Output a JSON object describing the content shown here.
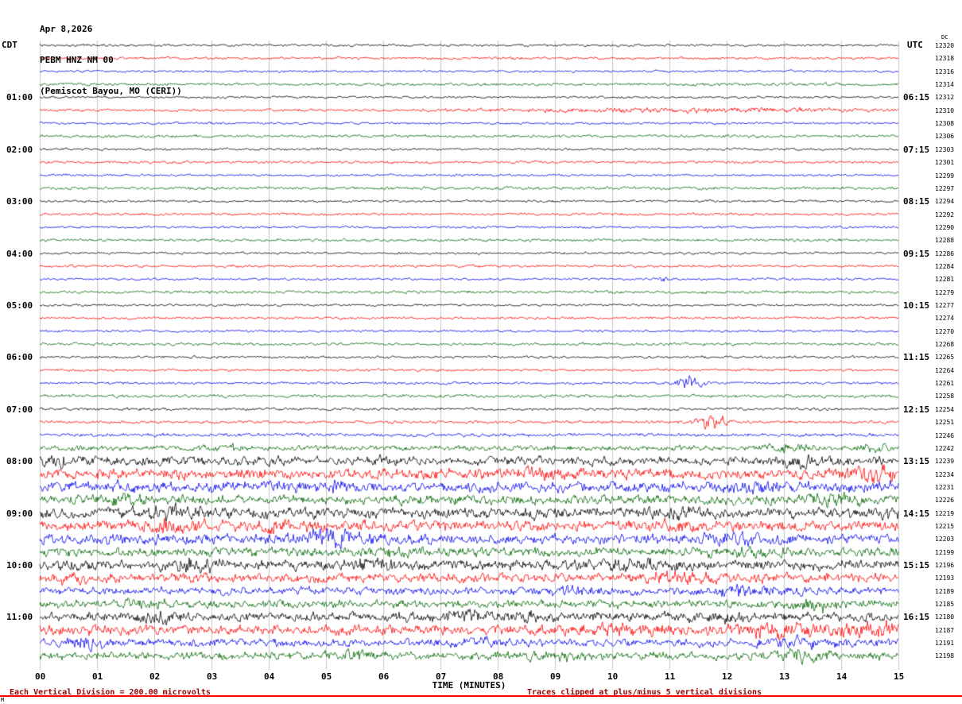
{
  "header": {
    "date": "Apr 8,2026",
    "station": "PEBM HNZ NM 00",
    "location": "(Pemiscot Bayou, MO (CERI))"
  },
  "axes": {
    "left_tz": "CDT",
    "right_tz": "UTC",
    "dc_label": "DC",
    "xlabel": "TIME (MINUTES)",
    "x_ticks": [
      "00",
      "01",
      "02",
      "03",
      "04",
      "05",
      "06",
      "07",
      "08",
      "09",
      "10",
      "11",
      "12",
      "13",
      "14",
      "15"
    ]
  },
  "footer": {
    "left_note": "Each Vertical Division =  200.00 microvolts",
    "right_note": "Traces clipped at plus/minus 5 vertical divisions",
    "corner": "M"
  },
  "chart_data": {
    "type": "line",
    "title": "Helicorder seismogram PEBM HNZ NM 00 (Pemiscot Bayou, MO, CERI), Apr 8 2026",
    "xlabel": "TIME (MINUTES)",
    "x_range_minutes": [
      0,
      15
    ],
    "minutes_per_row": 15,
    "rows_per_hour": 4,
    "y_scale_note": "Each vertical division = 200.00 microvolts; traces clipped at +/-5 divisions",
    "grid_color": "#c6c6c6",
    "trace_colors": [
      "#000000",
      "#ff0000",
      "#0000ee",
      "#006600"
    ],
    "legend": "row colors cycle black, red, blue, green; left labels CDT start time, right labels UTC end time, far right column DC value",
    "rows": [
      {
        "dc": "12320",
        "amp": 0.9,
        "events": []
      },
      {
        "dc": "12318",
        "amp": 1.0,
        "events": []
      },
      {
        "dc": "12316",
        "amp": 0.9,
        "events": []
      },
      {
        "dc": "12314",
        "amp": 1.1,
        "events": []
      },
      {
        "cdt": "01:00",
        "utc": "06:15",
        "dc": "12312",
        "amp": 0.9,
        "events": []
      },
      {
        "dc": "12310",
        "amp": 1.0,
        "events": [
          {
            "t": 11.5,
            "a": 1.2,
            "w": 2.5
          }
        ]
      },
      {
        "dc": "12308",
        "amp": 0.9,
        "events": []
      },
      {
        "dc": "12306",
        "amp": 1.1,
        "events": []
      },
      {
        "cdt": "02:00",
        "utc": "07:15",
        "dc": "12303",
        "amp": 0.9,
        "events": []
      },
      {
        "dc": "12301",
        "amp": 1.0,
        "events": []
      },
      {
        "dc": "12299",
        "amp": 0.9,
        "events": []
      },
      {
        "dc": "12297",
        "amp": 1.1,
        "events": []
      },
      {
        "cdt": "03:00",
        "utc": "08:15",
        "dc": "12294",
        "amp": 0.9,
        "events": []
      },
      {
        "dc": "12292",
        "amp": 1.0,
        "events": []
      },
      {
        "dc": "12290",
        "amp": 0.9,
        "events": []
      },
      {
        "dc": "12288",
        "amp": 1.1,
        "events": []
      },
      {
        "cdt": "04:00",
        "utc": "09:15",
        "dc": "12286",
        "amp": 0.9,
        "events": []
      },
      {
        "dc": "12284",
        "amp": 1.0,
        "events": []
      },
      {
        "dc": "12281",
        "amp": 0.9,
        "events": [
          {
            "t": 10.9,
            "a": 2.5,
            "w": 0.06
          }
        ]
      },
      {
        "dc": "12279",
        "amp": 1.1,
        "events": []
      },
      {
        "cdt": "05:00",
        "utc": "10:15",
        "dc": "12277",
        "amp": 0.9,
        "events": []
      },
      {
        "dc": "12274",
        "amp": 1.0,
        "events": []
      },
      {
        "dc": "12270",
        "amp": 0.9,
        "events": []
      },
      {
        "dc": "12268",
        "amp": 1.1,
        "events": []
      },
      {
        "cdt": "06:00",
        "utc": "11:15",
        "dc": "12265",
        "amp": 1.0,
        "events": []
      },
      {
        "dc": "12264",
        "amp": 1.0,
        "events": []
      },
      {
        "dc": "12261",
        "amp": 1.0,
        "events": [
          {
            "t": 11.35,
            "a": 4.0,
            "w": 0.18
          }
        ]
      },
      {
        "dc": "12258",
        "amp": 1.2,
        "events": []
      },
      {
        "cdt": "07:00",
        "utc": "12:15",
        "dc": "12254",
        "amp": 1.1,
        "events": []
      },
      {
        "dc": "12251",
        "amp": 1.1,
        "events": [
          {
            "t": 11.75,
            "a": 4.5,
            "w": 0.22
          }
        ]
      },
      {
        "dc": "12246",
        "amp": 1.3,
        "events": []
      },
      {
        "dc": "12242",
        "amp": 2.0,
        "events": [
          {
            "t": 3.4,
            "a": 2.5,
            "w": 0.08
          },
          {
            "t": 13.1,
            "a": 3.0,
            "w": 0.25
          },
          {
            "t": 14.6,
            "a": 2.0,
            "w": 0.2
          }
        ]
      },
      {
        "cdt": "08:00",
        "utc": "13:15",
        "dc": "12239",
        "amp": 3.5,
        "events": [
          {
            "t": 0.3,
            "a": 2.5,
            "w": 0.3
          },
          {
            "t": 13.2,
            "a": 2.0,
            "w": 0.3
          }
        ]
      },
      {
        "dc": "12234",
        "amp": 4.0,
        "events": [
          {
            "t": 9.0,
            "a": 1.5,
            "w": 0.5
          },
          {
            "t": 14.6,
            "a": 4.0,
            "w": 0.25
          }
        ]
      },
      {
        "dc": "12231",
        "amp": 4.0,
        "events": [
          {
            "t": 5.0,
            "a": 2.0,
            "w": 0.4
          },
          {
            "t": 12.5,
            "a": 2.0,
            "w": 0.3
          }
        ]
      },
      {
        "dc": "12226",
        "amp": 3.5,
        "events": [
          {
            "t": 1.5,
            "a": 2.0,
            "w": 0.3
          },
          {
            "t": 13.8,
            "a": 2.5,
            "w": 0.4
          }
        ]
      },
      {
        "cdt": "09:00",
        "utc": "14:15",
        "dc": "12219",
        "amp": 4.0,
        "events": [
          {
            "t": 2.3,
            "a": 3.0,
            "w": 0.3
          },
          {
            "t": 11.0,
            "a": 2.0,
            "w": 0.3
          },
          {
            "t": 14.8,
            "a": 2.5,
            "w": 0.2
          }
        ]
      },
      {
        "dc": "12215",
        "amp": 4.0,
        "events": [
          {
            "t": 2.3,
            "a": 3.5,
            "w": 0.3
          },
          {
            "t": 4.2,
            "a": 2.5,
            "w": 0.3
          },
          {
            "t": 10.9,
            "a": 2.0,
            "w": 0.3
          }
        ]
      },
      {
        "dc": "12203",
        "amp": 4.0,
        "events": [
          {
            "t": 5.05,
            "a": 5.0,
            "w": 0.35
          },
          {
            "t": 12.2,
            "a": 2.5,
            "w": 0.4
          }
        ]
      },
      {
        "dc": "12199",
        "amp": 3.5,
        "events": [
          {
            "t": 6.0,
            "a": 1.5,
            "w": 0.4
          },
          {
            "t": 12.3,
            "a": 2.5,
            "w": 0.4
          }
        ]
      },
      {
        "cdt": "10:00",
        "utc": "15:15",
        "dc": "12196",
        "amp": 4.0,
        "events": [
          {
            "t": 2.7,
            "a": 3.5,
            "w": 0.35
          },
          {
            "t": 5.8,
            "a": 2.5,
            "w": 0.3
          },
          {
            "t": 10.3,
            "a": 2.5,
            "w": 0.4
          }
        ]
      },
      {
        "dc": "12193",
        "amp": 3.5,
        "events": [
          {
            "t": 0.5,
            "a": 1.5,
            "w": 0.3
          },
          {
            "t": 11.2,
            "a": 2.5,
            "w": 0.4
          }
        ]
      },
      {
        "dc": "12189",
        "amp": 3.0,
        "events": [
          {
            "t": 9.2,
            "a": 1.5,
            "w": 0.3
          },
          {
            "t": 12.4,
            "a": 3.0,
            "w": 0.35
          }
        ]
      },
      {
        "dc": "12185",
        "amp": 3.0,
        "events": [
          {
            "t": 2.0,
            "a": 1.5,
            "w": 0.3
          },
          {
            "t": 13.6,
            "a": 3.0,
            "w": 0.3
          }
        ]
      },
      {
        "cdt": "11:00",
        "utc": "16:15",
        "dc": "12180",
        "amp": 3.5,
        "events": [
          {
            "t": 2.1,
            "a": 3.0,
            "w": 0.25
          },
          {
            "t": 7.5,
            "a": 2.0,
            "w": 0.3
          },
          {
            "t": 8.4,
            "a": 2.0,
            "w": 0.25
          },
          {
            "t": 12.0,
            "a": 1.8,
            "w": 0.4
          }
        ]
      },
      {
        "dc": "12187",
        "amp": 4.0,
        "events": [
          {
            "t": 10.3,
            "a": 2.5,
            "w": 0.4
          },
          {
            "t": 12.9,
            "a": 3.5,
            "w": 0.5
          },
          {
            "t": 14.5,
            "a": 4.5,
            "w": 0.3
          }
        ]
      },
      {
        "dc": "12191",
        "amp": 3.0,
        "events": [
          {
            "t": 0.9,
            "a": 3.0,
            "w": 0.25
          },
          {
            "t": 7.8,
            "a": 1.8,
            "w": 0.3
          },
          {
            "t": 13.5,
            "a": 2.0,
            "w": 0.4
          }
        ]
      },
      {
        "dc": "12198",
        "amp": 3.0,
        "events": [
          {
            "t": 5.6,
            "a": 2.0,
            "w": 0.3
          },
          {
            "t": 9.0,
            "a": 2.0,
            "w": 0.35
          },
          {
            "t": 13.3,
            "a": 3.0,
            "w": 0.4
          }
        ]
      }
    ]
  }
}
